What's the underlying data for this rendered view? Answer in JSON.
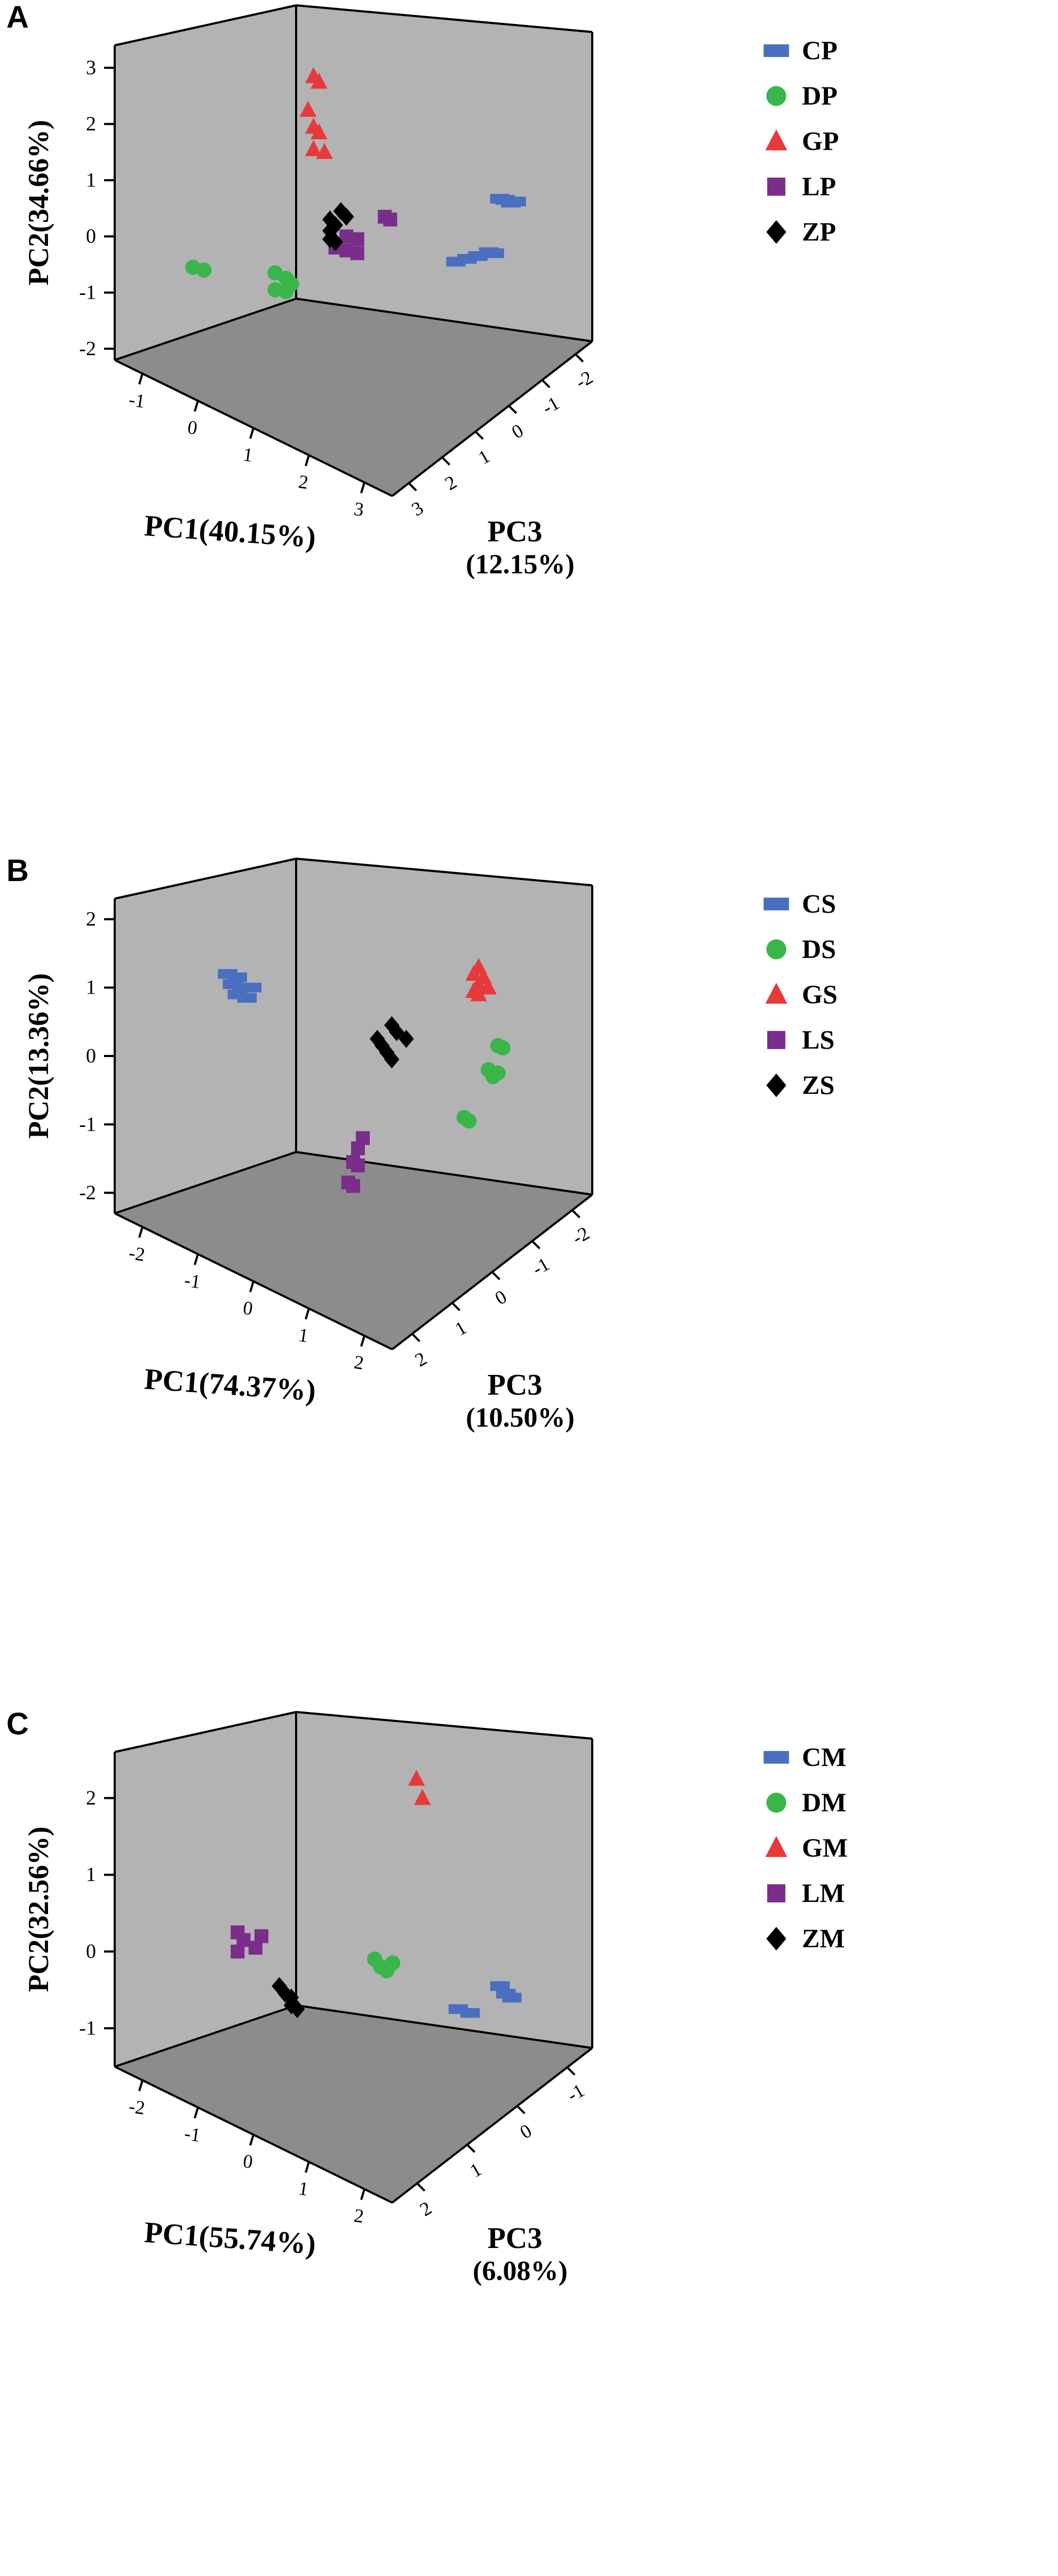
{
  "colors": {
    "C": "#4a6fc0",
    "D": "#3ab54a",
    "G": "#e8393a",
    "L": "#7b2d8b",
    "Z": "#000000",
    "wall": "#b3b3b3",
    "floor": "#8c8c8c",
    "frame": "#000000"
  },
  "chart_data": [
    {
      "type": "scatter",
      "projection": "3d",
      "panel_label": "A",
      "xlabel": "PC1(40.15%)",
      "ylabel": "PC2(34.66%)",
      "zlabel_line1": "PC3",
      "zlabel_line2": "(12.15%)",
      "xticks": [
        "-1",
        "0",
        "1",
        "2",
        "3"
      ],
      "yticks": [
        "3",
        "2",
        "1",
        "0",
        "-1",
        "-2"
      ],
      "zticks": [
        "3",
        "2",
        "1",
        "0",
        "-1",
        "-2"
      ],
      "legend": [
        {
          "key": "C",
          "label": "CP",
          "marker": "square-wide"
        },
        {
          "key": "D",
          "label": "DP",
          "marker": "circle"
        },
        {
          "key": "G",
          "label": "GP",
          "marker": "triangle"
        },
        {
          "key": "L",
          "label": "LP",
          "marker": "square"
        },
        {
          "key": "Z",
          "label": "ZP",
          "marker": "diamond"
        }
      ],
      "series": [
        {
          "key": "C",
          "points": [
            [
              1.65,
              0.65
            ],
            [
              1.7,
              0.6
            ],
            [
              1.75,
              0.62
            ],
            [
              1.6,
              0.67
            ],
            [
              1.2,
              -0.45
            ],
            [
              1.3,
              -0.4
            ],
            [
              1.4,
              -0.35
            ],
            [
              1.5,
              -0.28
            ],
            [
              1.55,
              -0.3
            ]
          ]
        },
        {
          "key": "D",
          "points": [
            [
              -1.2,
              -0.55
            ],
            [
              -1.1,
              -0.6
            ],
            [
              -0.45,
              -0.65
            ],
            [
              -0.35,
              -0.75
            ],
            [
              -0.45,
              -0.95
            ],
            [
              -0.3,
              -0.85
            ],
            [
              -0.35,
              -0.98
            ]
          ]
        },
        {
          "key": "G",
          "points": [
            [
              -0.1,
              2.85
            ],
            [
              -0.05,
              2.75
            ],
            [
              -0.15,
              2.25
            ],
            [
              -0.1,
              1.95
            ],
            [
              -0.05,
              1.85
            ],
            [
              -0.1,
              1.55
            ],
            [
              0.0,
              1.5
            ]
          ]
        },
        {
          "key": "L",
          "points": [
            [
              0.55,
              0.35
            ],
            [
              0.6,
              0.3
            ],
            [
              0.2,
              0.0
            ],
            [
              0.3,
              -0.05
            ],
            [
              0.2,
              -0.25
            ],
            [
              0.3,
              -0.3
            ],
            [
              0.1,
              -0.2
            ]
          ]
        },
        {
          "key": "Z",
          "points": [
            [
              0.15,
              0.45
            ],
            [
              0.2,
              0.35
            ],
            [
              0.05,
              0.3
            ],
            [
              0.1,
              0.2
            ],
            [
              0.05,
              0.1
            ],
            [
              0.05,
              -0.05
            ],
            [
              0.1,
              -0.1
            ]
          ]
        }
      ]
    },
    {
      "type": "scatter",
      "projection": "3d",
      "panel_label": "B",
      "xlabel": "PC1(74.37%)",
      "ylabel": "PC2(13.36%)",
      "zlabel_line1": "PC3",
      "zlabel_line2": "(10.50%)",
      "xticks": [
        "-2",
        "-1",
        "0",
        "1",
        "2"
      ],
      "yticks": [
        "2",
        "1",
        "0",
        "-1",
        "-2"
      ],
      "zticks": [
        "2",
        "1",
        "0",
        "-1",
        "-2"
      ],
      "legend": [
        {
          "key": "C",
          "label": "CS",
          "marker": "square-wide"
        },
        {
          "key": "D",
          "label": "DS",
          "marker": "circle"
        },
        {
          "key": "G",
          "label": "GS",
          "marker": "triangle"
        },
        {
          "key": "L",
          "label": "LS",
          "marker": "square"
        },
        {
          "key": "Z",
          "label": "ZS",
          "marker": "diamond"
        }
      ],
      "series": [
        {
          "key": "C",
          "points": [
            [
              -1.3,
              1.2
            ],
            [
              -1.2,
              1.15
            ],
            [
              -1.25,
              1.05
            ],
            [
              -1.15,
              1.0
            ],
            [
              -1.05,
              1.0
            ],
            [
              -1.2,
              0.9
            ],
            [
              -1.1,
              0.85
            ]
          ]
        },
        {
          "key": "D",
          "points": [
            [
              1.5,
              0.15
            ],
            [
              1.55,
              0.12
            ],
            [
              1.4,
              -0.2
            ],
            [
              1.45,
              -0.3
            ],
            [
              1.5,
              -0.25
            ],
            [
              1.15,
              -0.9
            ],
            [
              1.2,
              -0.95
            ]
          ]
        },
        {
          "key": "G",
          "points": [
            [
              1.3,
              1.3
            ],
            [
              1.25,
              1.2
            ],
            [
              1.35,
              1.15
            ],
            [
              1.3,
              1.05
            ],
            [
              1.4,
              1.0
            ],
            [
              1.3,
              0.9
            ],
            [
              1.25,
              0.95
            ]
          ]
        },
        {
          "key": "L",
          "points": [
            [
              0.1,
              -1.2
            ],
            [
              0.05,
              -1.35
            ],
            [
              0.0,
              -1.55
            ],
            [
              0.05,
              -1.6
            ],
            [
              -0.05,
              -1.85
            ],
            [
              0.0,
              -1.9
            ]
          ]
        },
        {
          "key": "Z",
          "points": [
            [
              0.4,
              0.45
            ],
            [
              0.45,
              0.35
            ],
            [
              0.55,
              0.25
            ],
            [
              0.3,
              0.15
            ],
            [
              0.35,
              0.05
            ],
            [
              0.4,
              -0.05
            ],
            [
              0.25,
              0.25
            ]
          ]
        }
      ]
    },
    {
      "type": "scatter",
      "projection": "3d",
      "panel_label": "C",
      "xlabel": "PC1(55.74%)",
      "ylabel": "PC2(32.56%)",
      "zlabel_line1": "PC3",
      "zlabel_line2": "(6.08%)",
      "xticks": [
        "-2",
        "-1",
        "0",
        "1",
        "2"
      ],
      "yticks": [
        "2",
        "1",
        "0",
        "-1"
      ],
      "zticks": [
        "2",
        "1",
        "0",
        "-1"
      ],
      "legend": [
        {
          "key": "C",
          "label": "CM",
          "marker": "square-wide"
        },
        {
          "key": "D",
          "label": "DM",
          "marker": "circle"
        },
        {
          "key": "G",
          "label": "GM",
          "marker": "triangle"
        },
        {
          "key": "L",
          "label": "LM",
          "marker": "square"
        },
        {
          "key": "Z",
          "label": "ZM",
          "marker": "diamond"
        }
      ],
      "series": [
        {
          "key": "C",
          "points": [
            [
              1.85,
              -0.45
            ],
            [
              1.9,
              -0.55
            ],
            [
              1.95,
              -0.6
            ],
            [
              1.5,
              -0.75
            ],
            [
              1.6,
              -0.8
            ]
          ]
        },
        {
          "key": "D",
          "points": [
            [
              0.8,
              -0.1
            ],
            [
              0.85,
              -0.2
            ],
            [
              0.95,
              -0.15
            ],
            [
              0.9,
              -0.25
            ]
          ]
        },
        {
          "key": "G",
          "points": [
            [
              1.15,
              2.25
            ],
            [
              1.2,
              2.0
            ]
          ]
        },
        {
          "key": "L",
          "points": [
            [
              -0.35,
              0.25
            ],
            [
              -0.15,
              0.2
            ],
            [
              -0.3,
              0.15
            ],
            [
              -0.2,
              0.05
            ],
            [
              -0.35,
              0.0
            ]
          ]
        },
        {
          "key": "Z",
          "points": [
            [
              0.0,
              -0.45
            ],
            [
              0.05,
              -0.55
            ],
            [
              0.1,
              -0.6
            ],
            [
              0.1,
              -0.7
            ],
            [
              0.15,
              -0.75
            ]
          ]
        }
      ]
    }
  ]
}
